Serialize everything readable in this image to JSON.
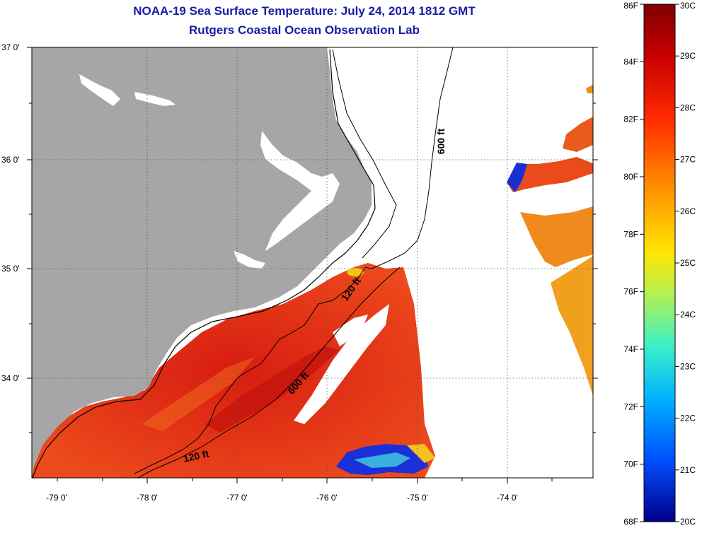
{
  "header": {
    "title": "NOAA-19 Sea Surface Temperature:  July 24, 2014 1812 GMT",
    "subtitle": "Rutgers Coastal Ocean Observation Lab"
  },
  "map": {
    "lat_ticks": [
      "37 0'",
      "36 0'",
      "35 0'",
      "34 0'"
    ],
    "lon_ticks": [
      "-79 0'",
      "-78 0'",
      "-77 0'",
      "-76 0'",
      "-75 0'",
      "-74 0'"
    ],
    "contour_labels": [
      "600 ft",
      "120 ft",
      "600 ft",
      "120 ft"
    ],
    "colors": {
      "land": "#a6a6a6",
      "ocean_warm": "#e8361e",
      "ocean_mid": "#f0861a",
      "ocean_cool": "#1a2fd0",
      "nodata": "#ffffff"
    }
  },
  "colorbar": {
    "fahrenheit": [
      "86F",
      "84F",
      "82F",
      "80F",
      "78F",
      "76F",
      "74F",
      "72F",
      "70F",
      "68F"
    ],
    "celsius": [
      "30C",
      "29C",
      "28C",
      "27C",
      "26C",
      "25C",
      "24C",
      "23C",
      "22C",
      "21C",
      "20C"
    ]
  }
}
